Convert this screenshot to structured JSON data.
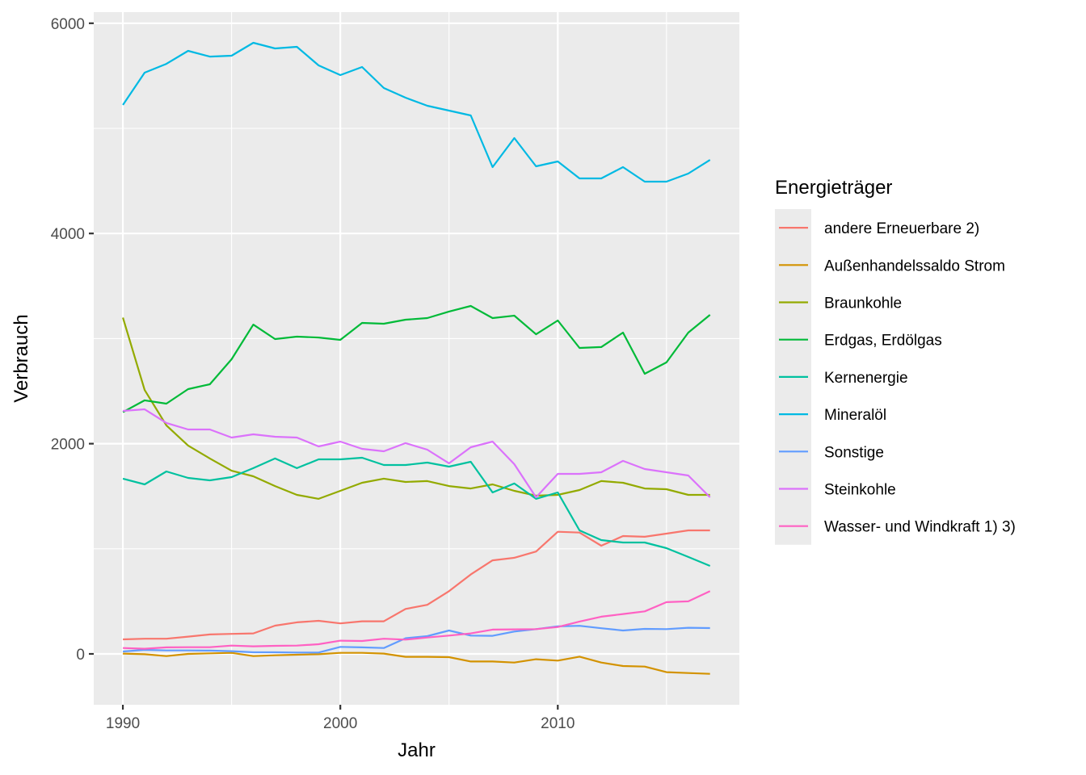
{
  "chart_data": {
    "type": "line",
    "title": "",
    "xlabel": "Jahr",
    "ylabel": "Verbrauch",
    "xlim": [
      1988.66,
      2018.35
    ],
    "ylim": [
      -484,
      6106
    ],
    "x_ticks": [
      1990,
      2000,
      2010
    ],
    "x_minor": [
      1995,
      2005,
      2015
    ],
    "y_ticks": [
      0,
      2000,
      4000,
      6000
    ],
    "y_minor": [
      1000,
      3000,
      5000
    ],
    "grid": true,
    "legend": {
      "title": "Energieträger",
      "position": "right"
    },
    "x": [
      1990,
      1991,
      1992,
      1993,
      1994,
      1995,
      1996,
      1997,
      1998,
      1999,
      2000,
      2001,
      2002,
      2003,
      2004,
      2005,
      2006,
      2007,
      2008,
      2009,
      2010,
      2011,
      2012,
      2013,
      2014,
      2015,
      2016,
      2017
    ],
    "series": [
      {
        "name": "andere Erneuerbare 2)",
        "color": "#F8766D",
        "values": [
          138,
          144,
          144,
          164,
          185,
          190,
          195,
          269,
          300,
          315,
          290,
          310,
          310,
          428,
          467,
          597,
          756,
          890,
          915,
          974,
          1162,
          1154,
          1029,
          1121,
          1114,
          1144,
          1175,
          1175
        ]
      },
      {
        "name": "Außenhandelssaldo Strom",
        "color": "#D39200",
        "values": [
          3,
          -3,
          -21,
          0,
          5,
          10,
          -21,
          -13,
          -8,
          -3,
          10,
          10,
          3,
          -28,
          -28,
          -31,
          -72,
          -72,
          -82,
          -51,
          -64,
          -26,
          -82,
          -115,
          -121,
          -174,
          -182,
          -190
        ]
      },
      {
        "name": "Braunkohle",
        "color": "#93AA00",
        "values": [
          3200,
          2511,
          2174,
          1982,
          1859,
          1743,
          1690,
          1597,
          1513,
          1475,
          1551,
          1628,
          1667,
          1636,
          1644,
          1597,
          1574,
          1613,
          1551,
          1505,
          1513,
          1559,
          1644,
          1628,
          1574,
          1567,
          1513,
          1513
        ]
      },
      {
        "name": "Erdgas, Erdölgas",
        "color": "#00BA38",
        "values": [
          2300,
          2412,
          2381,
          2519,
          2565,
          2803,
          3133,
          2995,
          3018,
          3010,
          2988,
          3149,
          3141,
          3180,
          3195,
          3257,
          3310,
          3195,
          3218,
          3041,
          3172,
          2911,
          2919,
          3057,
          2665,
          2773,
          3057,
          3226
        ]
      },
      {
        "name": "Kernenergie",
        "color": "#00C19F",
        "values": [
          1667,
          1613,
          1736,
          1674,
          1651,
          1682,
          1767,
          1859,
          1767,
          1851,
          1851,
          1866,
          1797,
          1797,
          1820,
          1782,
          1828,
          1536,
          1621,
          1475,
          1536,
          1175,
          1083,
          1060,
          1060,
          1006,
          922,
          837
        ]
      },
      {
        "name": "Mineralöl",
        "color": "#00B9E3",
        "values": [
          5223,
          5530,
          5614,
          5737,
          5683,
          5691,
          5814,
          5760,
          5776,
          5599,
          5507,
          5584,
          5384,
          5292,
          5215,
          5169,
          5123,
          4631,
          4908,
          4639,
          4685,
          4524,
          4524,
          4631,
          4493,
          4493,
          4570,
          4700
        ]
      },
      {
        "name": "Sonstige",
        "color": "#619CFF",
        "values": [
          23,
          38,
          33,
          33,
          31,
          26,
          15,
          15,
          13,
          13,
          67,
          62,
          56,
          149,
          169,
          223,
          174,
          172,
          213,
          236,
          262,
          267,
          244,
          223,
          238,
          236,
          249,
          246
        ]
      },
      {
        "name": "Steinkohle",
        "color": "#DB72FB",
        "values": [
          2312,
          2327,
          2197,
          2135,
          2135,
          2058,
          2089,
          2066,
          2058,
          1974,
          2020,
          1951,
          1928,
          2005,
          1943,
          1813,
          1966,
          2020,
          1805,
          1490,
          1713,
          1713,
          1728,
          1836,
          1759,
          1728,
          1697,
          1490
        ]
      },
      {
        "name": "Wasser- und Windkraft 1) 3)",
        "color": "#FF61C3",
        "values": [
          56,
          49,
          62,
          64,
          64,
          79,
          72,
          77,
          79,
          92,
          126,
          123,
          144,
          136,
          156,
          174,
          195,
          231,
          233,
          236,
          256,
          308,
          354,
          379,
          405,
          492,
          500,
          597
        ]
      }
    ]
  }
}
